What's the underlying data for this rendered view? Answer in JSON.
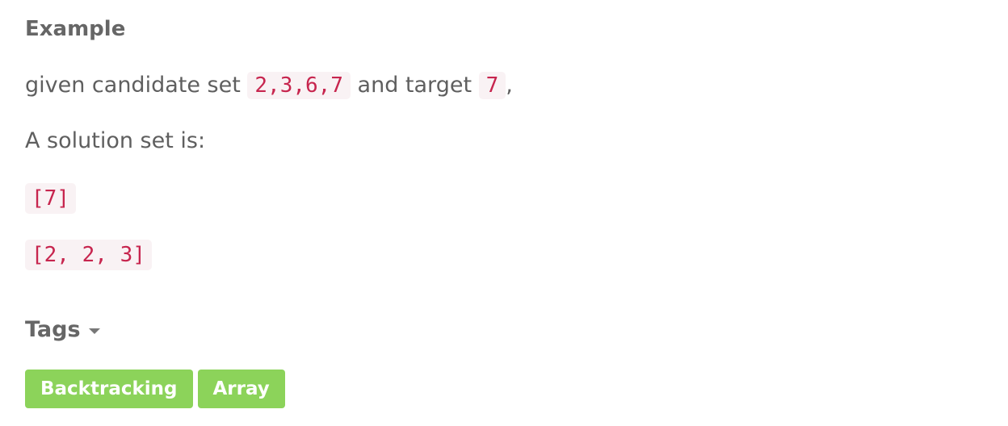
{
  "example": {
    "title": "Example",
    "line1_prefix": "given candidate set ",
    "candidates": "2,3,6,7",
    "line1_middle": " and target ",
    "target": "7",
    "line1_suffix": ",",
    "line2": "A solution set is:",
    "solutions": [
      "[7]",
      "[2, 2, 3]"
    ]
  },
  "tags": {
    "label": "Tags",
    "items": [
      "Backtracking",
      "Array"
    ]
  },
  "colors": {
    "tag_background": "#8cd35a",
    "code_text": "#c7254e",
    "code_background": "#f9f2f4"
  }
}
